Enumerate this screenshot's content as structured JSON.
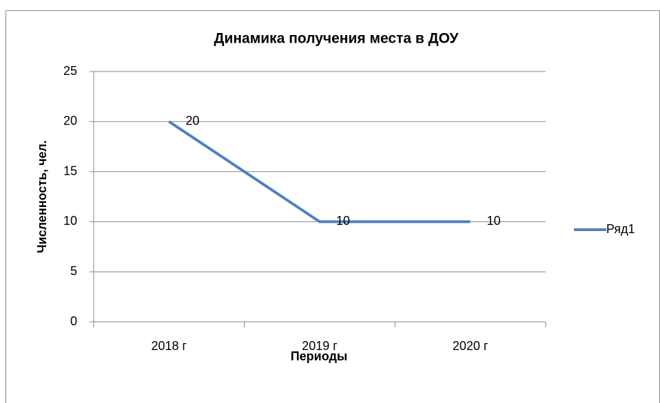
{
  "chart_data": {
    "type": "line",
    "title": "Динамика получения места в ДОУ",
    "x_label": "Периоды",
    "y_label": "Численность, чел.",
    "categories": [
      "2018 г",
      "2019 г",
      "2020 г"
    ],
    "series": [
      {
        "name": "Ряд1",
        "color": "#4f81bd",
        "values": [
          20,
          10,
          10
        ]
      }
    ],
    "ylim": [
      0,
      25
    ],
    "yticks": [
      0,
      5,
      10,
      15,
      20,
      25
    ],
    "grid": true,
    "data_labels": true,
    "legend": "right"
  }
}
